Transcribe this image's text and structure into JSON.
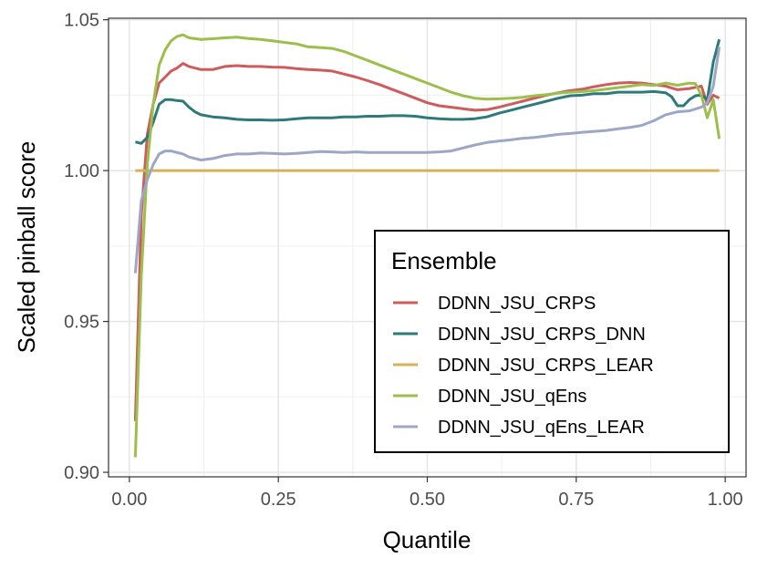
{
  "chart_data": {
    "type": "line",
    "title": "",
    "xlabel": "Quantile",
    "ylabel": "Scaled pinball score",
    "xlim": [
      -0.035,
      1.035
    ],
    "ylim": [
      0.8985,
      1.0505
    ],
    "xticks": [
      0.0,
      0.25,
      0.5,
      0.75,
      1.0
    ],
    "xtick_labels": [
      "0.00",
      "0.25",
      "0.50",
      "0.75",
      "1.00"
    ],
    "yticks": [
      0.9,
      0.95,
      1.0,
      1.05
    ],
    "ytick_labels": [
      "0.90",
      "0.95",
      "1.00",
      "1.05"
    ],
    "grid": true,
    "legend_title": "Ensemble",
    "legend_position": "bottom-right",
    "series": [
      {
        "name": "DDNN_JSU_CRPS",
        "color": "#cd5c5c",
        "points": [
          [
            0.01,
            0.917
          ],
          [
            0.02,
            0.985
          ],
          [
            0.03,
            1.012
          ],
          [
            0.04,
            1.022
          ],
          [
            0.05,
            1.029
          ],
          [
            0.06,
            1.031
          ],
          [
            0.07,
            1.033
          ],
          [
            0.08,
            1.034
          ],
          [
            0.09,
            1.0355
          ],
          [
            0.1,
            1.0345
          ],
          [
            0.12,
            1.0335
          ],
          [
            0.14,
            1.0335
          ],
          [
            0.16,
            1.0345
          ],
          [
            0.18,
            1.0348
          ],
          [
            0.2,
            1.0345
          ],
          [
            0.22,
            1.0345
          ],
          [
            0.24,
            1.0343
          ],
          [
            0.26,
            1.0342
          ],
          [
            0.28,
            1.0338
          ],
          [
            0.3,
            1.0335
          ],
          [
            0.32,
            1.0333
          ],
          [
            0.34,
            1.033
          ],
          [
            0.36,
            1.032
          ],
          [
            0.38,
            1.031
          ],
          [
            0.4,
            1.0298
          ],
          [
            0.42,
            1.0285
          ],
          [
            0.44,
            1.027
          ],
          [
            0.46,
            1.0255
          ],
          [
            0.48,
            1.024
          ],
          [
            0.5,
            1.0225
          ],
          [
            0.52,
            1.0215
          ],
          [
            0.54,
            1.021
          ],
          [
            0.56,
            1.0205
          ],
          [
            0.58,
            1.02
          ],
          [
            0.6,
            1.0202
          ],
          [
            0.62,
            1.021
          ],
          [
            0.64,
            1.022
          ],
          [
            0.66,
            1.023
          ],
          [
            0.68,
            1.024
          ],
          [
            0.7,
            1.025
          ],
          [
            0.72,
            1.0258
          ],
          [
            0.74,
            1.0265
          ],
          [
            0.76,
            1.027
          ],
          [
            0.78,
            1.0278
          ],
          [
            0.8,
            1.0285
          ],
          [
            0.82,
            1.029
          ],
          [
            0.84,
            1.0292
          ],
          [
            0.86,
            1.029
          ],
          [
            0.88,
            1.0285
          ],
          [
            0.9,
            1.028
          ],
          [
            0.92,
            1.0268
          ],
          [
            0.94,
            1.0272
          ],
          [
            0.96,
            1.028
          ],
          [
            0.97,
            1.022
          ],
          [
            0.98,
            1.025
          ],
          [
            0.99,
            1.024
          ]
        ]
      },
      {
        "name": "DDNN_JSU_CRPS_DNN",
        "color": "#2e7a7a",
        "points": [
          [
            0.01,
            1.0095
          ],
          [
            0.02,
            1.009
          ],
          [
            0.03,
            1.011
          ],
          [
            0.04,
            1.016
          ],
          [
            0.05,
            1.022
          ],
          [
            0.06,
            1.0235
          ],
          [
            0.07,
            1.0235
          ],
          [
            0.08,
            1.0232
          ],
          [
            0.09,
            1.023
          ],
          [
            0.1,
            1.021
          ],
          [
            0.11,
            1.0195
          ],
          [
            0.12,
            1.0185
          ],
          [
            0.14,
            1.0178
          ],
          [
            0.16,
            1.0175
          ],
          [
            0.18,
            1.017
          ],
          [
            0.2,
            1.0168
          ],
          [
            0.22,
            1.0168
          ],
          [
            0.24,
            1.0167
          ],
          [
            0.26,
            1.0168
          ],
          [
            0.28,
            1.0172
          ],
          [
            0.3,
            1.0175
          ],
          [
            0.32,
            1.0175
          ],
          [
            0.34,
            1.0175
          ],
          [
            0.36,
            1.0178
          ],
          [
            0.38,
            1.0178
          ],
          [
            0.4,
            1.018
          ],
          [
            0.42,
            1.018
          ],
          [
            0.44,
            1.0182
          ],
          [
            0.46,
            1.0182
          ],
          [
            0.48,
            1.018
          ],
          [
            0.5,
            1.0175
          ],
          [
            0.52,
            1.0172
          ],
          [
            0.54,
            1.017
          ],
          [
            0.56,
            1.017
          ],
          [
            0.58,
            1.0172
          ],
          [
            0.6,
            1.0178
          ],
          [
            0.62,
            1.019
          ],
          [
            0.64,
            1.02
          ],
          [
            0.66,
            1.021
          ],
          [
            0.68,
            1.022
          ],
          [
            0.7,
            1.023
          ],
          [
            0.72,
            1.024
          ],
          [
            0.74,
            1.0248
          ],
          [
            0.76,
            1.025
          ],
          [
            0.78,
            1.0255
          ],
          [
            0.8,
            1.0255
          ],
          [
            0.82,
            1.026
          ],
          [
            0.84,
            1.026
          ],
          [
            0.86,
            1.026
          ],
          [
            0.88,
            1.0262
          ],
          [
            0.9,
            1.0258
          ],
          [
            0.91,
            1.0245
          ],
          [
            0.92,
            1.0215
          ],
          [
            0.93,
            1.0215
          ],
          [
            0.94,
            1.0235
          ],
          [
            0.95,
            1.0248
          ],
          [
            0.96,
            1.025
          ],
          [
            0.97,
            1.0235
          ],
          [
            0.98,
            1.036
          ],
          [
            0.99,
            1.0435
          ]
        ]
      },
      {
        "name": "DDNN_JSU_CRPS_LEAR",
        "color": "#d4b25a",
        "points": [
          [
            0.01,
            1.0
          ],
          [
            0.99,
            1.0
          ]
        ]
      },
      {
        "name": "DDNN_JSU_qEns",
        "color": "#9bbf4a",
        "points": [
          [
            0.01,
            0.905
          ],
          [
            0.02,
            0.965
          ],
          [
            0.03,
            1.002
          ],
          [
            0.04,
            1.022
          ],
          [
            0.05,
            1.035
          ],
          [
            0.06,
            1.04
          ],
          [
            0.07,
            1.043
          ],
          [
            0.08,
            1.0445
          ],
          [
            0.09,
            1.045
          ],
          [
            0.1,
            1.044
          ],
          [
            0.12,
            1.0435
          ],
          [
            0.14,
            1.0437
          ],
          [
            0.16,
            1.044
          ],
          [
            0.18,
            1.0442
          ],
          [
            0.2,
            1.0438
          ],
          [
            0.22,
            1.0435
          ],
          [
            0.24,
            1.043
          ],
          [
            0.26,
            1.0425
          ],
          [
            0.28,
            1.042
          ],
          [
            0.3,
            1.041
          ],
          [
            0.32,
            1.0408
          ],
          [
            0.34,
            1.0405
          ],
          [
            0.36,
            1.0395
          ],
          [
            0.38,
            1.038
          ],
          [
            0.4,
            1.0365
          ],
          [
            0.42,
            1.035
          ],
          [
            0.44,
            1.0335
          ],
          [
            0.46,
            1.032
          ],
          [
            0.48,
            1.0305
          ],
          [
            0.5,
            1.029
          ],
          [
            0.52,
            1.0275
          ],
          [
            0.54,
            1.026
          ],
          [
            0.56,
            1.0248
          ],
          [
            0.58,
            1.024
          ],
          [
            0.6,
            1.0237
          ],
          [
            0.62,
            1.0238
          ],
          [
            0.64,
            1.024
          ],
          [
            0.66,
            1.0243
          ],
          [
            0.68,
            1.0248
          ],
          [
            0.7,
            1.0252
          ],
          [
            0.72,
            1.0257
          ],
          [
            0.74,
            1.026
          ],
          [
            0.76,
            1.0262
          ],
          [
            0.78,
            1.0265
          ],
          [
            0.8,
            1.027
          ],
          [
            0.82,
            1.0275
          ],
          [
            0.84,
            1.028
          ],
          [
            0.86,
            1.0285
          ],
          [
            0.88,
            1.0282
          ],
          [
            0.9,
            1.029
          ],
          [
            0.92,
            1.0283
          ],
          [
            0.94,
            1.029
          ],
          [
            0.95,
            1.0288
          ],
          [
            0.96,
            1.025
          ],
          [
            0.97,
            1.0175
          ],
          [
            0.98,
            1.0235
          ],
          [
            0.99,
            1.0105
          ]
        ]
      },
      {
        "name": "DDNN_JSU_qEns_LEAR",
        "color": "#9ca7c8",
        "points": [
          [
            0.01,
            0.966
          ],
          [
            0.02,
            0.99
          ],
          [
            0.03,
            0.997
          ],
          [
            0.04,
            1.002
          ],
          [
            0.05,
            1.0055
          ],
          [
            0.06,
            1.0065
          ],
          [
            0.07,
            1.0065
          ],
          [
            0.08,
            1.006
          ],
          [
            0.09,
            1.0055
          ],
          [
            0.1,
            1.0045
          ],
          [
            0.12,
            1.0035
          ],
          [
            0.14,
            1.004
          ],
          [
            0.16,
            1.005
          ],
          [
            0.18,
            1.0055
          ],
          [
            0.2,
            1.0055
          ],
          [
            0.22,
            1.0058
          ],
          [
            0.24,
            1.0057
          ],
          [
            0.26,
            1.0055
          ],
          [
            0.28,
            1.0057
          ],
          [
            0.3,
            1.006
          ],
          [
            0.32,
            1.0063
          ],
          [
            0.34,
            1.0062
          ],
          [
            0.36,
            1.006
          ],
          [
            0.38,
            1.0062
          ],
          [
            0.4,
            1.006
          ],
          [
            0.42,
            1.006
          ],
          [
            0.44,
            1.006
          ],
          [
            0.46,
            1.006
          ],
          [
            0.48,
            1.006
          ],
          [
            0.5,
            1.006
          ],
          [
            0.52,
            1.0062
          ],
          [
            0.54,
            1.0065
          ],
          [
            0.56,
            1.0075
          ],
          [
            0.58,
            1.0085
          ],
          [
            0.6,
            1.0093
          ],
          [
            0.62,
            1.0098
          ],
          [
            0.64,
            1.0102
          ],
          [
            0.66,
            1.0107
          ],
          [
            0.68,
            1.011
          ],
          [
            0.7,
            1.0115
          ],
          [
            0.72,
            1.012
          ],
          [
            0.74,
            1.0123
          ],
          [
            0.76,
            1.0127
          ],
          [
            0.78,
            1.013
          ],
          [
            0.8,
            1.0133
          ],
          [
            0.82,
            1.0138
          ],
          [
            0.84,
            1.0143
          ],
          [
            0.86,
            1.015
          ],
          [
            0.88,
            1.0165
          ],
          [
            0.9,
            1.0185
          ],
          [
            0.92,
            1.0195
          ],
          [
            0.94,
            1.0198
          ],
          [
            0.96,
            1.021
          ],
          [
            0.97,
            1.0225
          ],
          [
            0.98,
            1.028
          ],
          [
            0.99,
            1.041
          ]
        ]
      }
    ]
  }
}
